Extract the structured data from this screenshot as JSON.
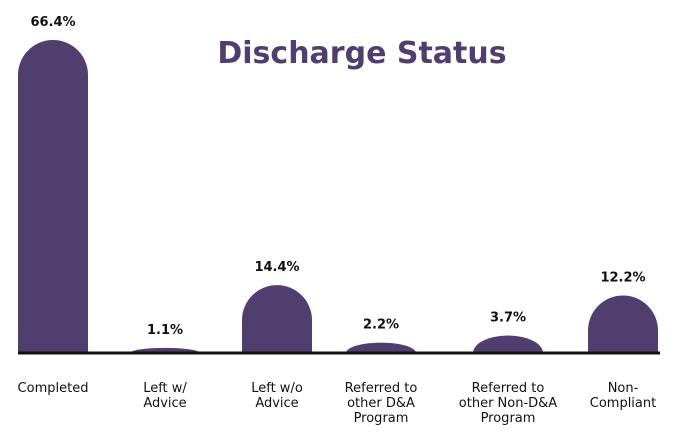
{
  "chart_data": {
    "type": "bar",
    "title": "Discharge Status",
    "categories": [
      "Completed",
      "Left w/\nAdvice",
      "Left w/o\nAdvice",
      "Referred to\nother D&A\nProgram",
      "Referred to\nother Non-D&A\nProgram",
      "Non-\nCompliant"
    ],
    "values": [
      66.4,
      1.1,
      14.4,
      2.2,
      3.7,
      12.2
    ],
    "value_labels": [
      "66.4%",
      "1.1%",
      "14.4%",
      "2.2%",
      "3.7%",
      "12.2%"
    ],
    "color": "#503e6e"
  }
}
